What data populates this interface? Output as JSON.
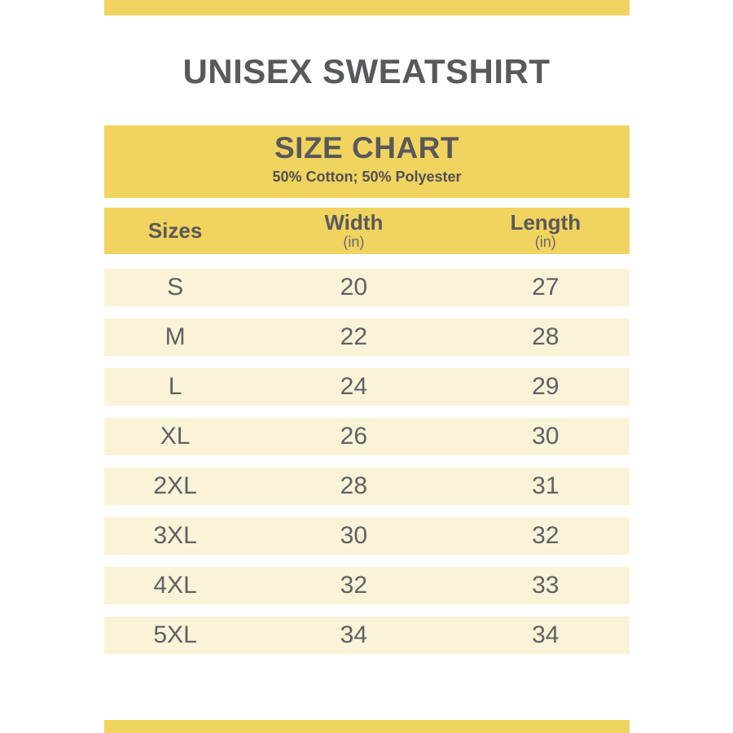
{
  "page": {
    "title": "UNISEX SWEATSHIRT"
  },
  "size_chart": {
    "heading": "SIZE CHART",
    "subtitle": "50% Cotton; 50% Polyester"
  },
  "table": {
    "columns": [
      {
        "label": "Sizes",
        "unit": ""
      },
      {
        "label": "Width",
        "unit": "(in)"
      },
      {
        "label": "Length",
        "unit": "(in)"
      }
    ],
    "rows": [
      {
        "size": "S",
        "width": "20",
        "length": "27"
      },
      {
        "size": "M",
        "width": "22",
        "length": "28"
      },
      {
        "size": "L",
        "width": "24",
        "length": "29"
      },
      {
        "size": "XL",
        "width": "26",
        "length": "30"
      },
      {
        "size": "2XL",
        "width": "28",
        "length": "31"
      },
      {
        "size": "3XL",
        "width": "30",
        "length": "32"
      },
      {
        "size": "4XL",
        "width": "32",
        "length": "33"
      },
      {
        "size": "5XL",
        "width": "34",
        "length": "34"
      }
    ]
  },
  "colors": {
    "accent_yellow": "#F1D35F",
    "row_cream": "#FAF3D8",
    "heading_text": "#58595B",
    "data_text": "#5F6164",
    "unit_text": "#6A6B6E",
    "page_bg": "#FFFFFF"
  }
}
